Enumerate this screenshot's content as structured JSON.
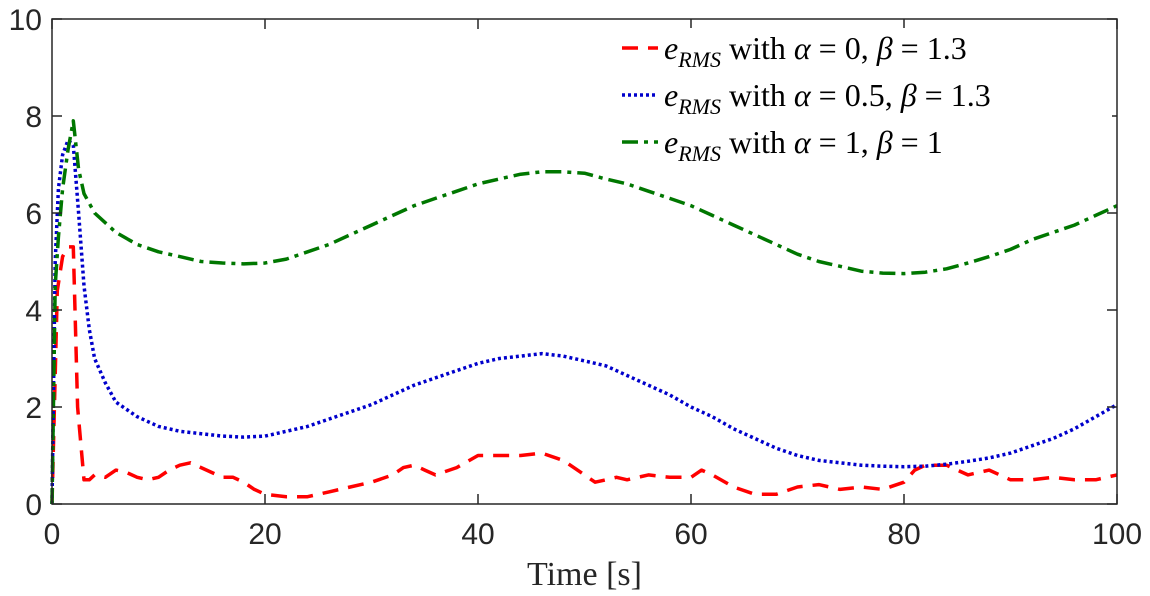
{
  "chart_data": {
    "type": "line",
    "title": "",
    "xlabel": "Time [s]",
    "ylabel": "",
    "xlim": [
      0,
      100
    ],
    "ylim": [
      0,
      10
    ],
    "xticks": [
      0,
      20,
      40,
      60,
      80,
      100
    ],
    "yticks": [
      0,
      2,
      4,
      6,
      8,
      10
    ],
    "grid": false,
    "legend_position": "top-right",
    "series": [
      {
        "legend": {
          "sym": "e",
          "sub": "RMS",
          "mid": " with ",
          "p1": "α",
          "v1": " = 0,  ",
          "p2": "β",
          "v2": " = 1.3"
        },
        "color": "#ff0000",
        "style": "dashed",
        "x": [
          0,
          0.5,
          1,
          1.5,
          2,
          2.4,
          3,
          3.5,
          4,
          5,
          6,
          7,
          8,
          9,
          10,
          11,
          12,
          13,
          14,
          15,
          16,
          17,
          18,
          19,
          20,
          22,
          24,
          26,
          28,
          30,
          32,
          33,
          34,
          35,
          36,
          38,
          40,
          42,
          44,
          46,
          48,
          50,
          51,
          52,
          53,
          54,
          56,
          58,
          60,
          61,
          62,
          64,
          66,
          68,
          70,
          72,
          74,
          76,
          78,
          80,
          81,
          82,
          84,
          86,
          88,
          90,
          92,
          94,
          96,
          98,
          100
        ],
        "y": [
          0,
          4.4,
          5.1,
          5.3,
          5.3,
          2.0,
          0.5,
          0.5,
          0.6,
          0.55,
          0.7,
          0.65,
          0.55,
          0.5,
          0.55,
          0.7,
          0.8,
          0.85,
          0.75,
          0.65,
          0.55,
          0.55,
          0.45,
          0.3,
          0.2,
          0.15,
          0.15,
          0.25,
          0.35,
          0.45,
          0.6,
          0.75,
          0.8,
          0.7,
          0.6,
          0.75,
          1.0,
          1.0,
          1.0,
          1.05,
          0.9,
          0.6,
          0.45,
          0.5,
          0.55,
          0.5,
          0.6,
          0.55,
          0.55,
          0.7,
          0.6,
          0.35,
          0.2,
          0.2,
          0.35,
          0.4,
          0.3,
          0.35,
          0.3,
          0.45,
          0.7,
          0.8,
          0.8,
          0.6,
          0.7,
          0.5,
          0.5,
          0.55,
          0.5,
          0.5,
          0.6
        ]
      },
      {
        "legend": {
          "sym": "e",
          "sub": "RMS",
          "mid": " with ",
          "p1": "α",
          "v1": " = 0.5,  ",
          "p2": "β",
          "v2": " = 1.3"
        },
        "color": "#0000cc",
        "style": "dotted",
        "x": [
          0,
          0.3,
          0.6,
          1,
          1.5,
          2,
          2.5,
          3,
          3.5,
          4,
          5,
          6,
          8,
          10,
          12,
          14,
          16,
          18,
          20,
          22,
          24,
          26,
          28,
          30,
          32,
          34,
          36,
          38,
          40,
          42,
          44,
          46,
          48,
          50,
          52,
          54,
          56,
          58,
          60,
          62,
          64,
          66,
          68,
          70,
          72,
          74,
          76,
          78,
          80,
          82,
          84,
          86,
          88,
          90,
          92,
          94,
          96,
          98,
          100
        ],
        "y": [
          0,
          5.0,
          6.5,
          7.2,
          7.5,
          7.4,
          6.0,
          4.5,
          3.6,
          3.0,
          2.5,
          2.1,
          1.8,
          1.6,
          1.5,
          1.45,
          1.4,
          1.38,
          1.4,
          1.5,
          1.6,
          1.75,
          1.9,
          2.05,
          2.25,
          2.45,
          2.6,
          2.75,
          2.9,
          3.0,
          3.05,
          3.1,
          3.05,
          2.95,
          2.85,
          2.65,
          2.45,
          2.25,
          2.0,
          1.8,
          1.55,
          1.35,
          1.15,
          1.0,
          0.9,
          0.85,
          0.8,
          0.78,
          0.77,
          0.78,
          0.82,
          0.88,
          0.95,
          1.05,
          1.2,
          1.35,
          1.55,
          1.8,
          2.05
        ]
      },
      {
        "legend": {
          "sym": "e",
          "sub": "RMS",
          "mid": " with ",
          "p1": "α",
          "v1": " = 1,  ",
          "p2": "β",
          "v2": " = 1"
        },
        "color": "#007700",
        "style": "dashdot",
        "x": [
          0,
          0.3,
          0.6,
          1,
          1.5,
          2,
          2.5,
          3,
          4,
          6,
          8,
          10,
          12,
          14,
          16,
          18,
          20,
          22,
          24,
          26,
          28,
          30,
          32,
          34,
          36,
          38,
          40,
          42,
          44,
          46,
          48,
          50,
          52,
          54,
          56,
          58,
          60,
          62,
          64,
          66,
          68,
          70,
          72,
          74,
          76,
          78,
          80,
          82,
          84,
          86,
          88,
          90,
          92,
          94,
          96,
          98,
          100
        ],
        "y": [
          0,
          4.5,
          5.5,
          6.5,
          7.3,
          7.9,
          6.9,
          6.4,
          6.0,
          5.6,
          5.35,
          5.2,
          5.1,
          5.0,
          4.97,
          4.95,
          4.97,
          5.05,
          5.2,
          5.35,
          5.55,
          5.75,
          5.95,
          6.15,
          6.3,
          6.45,
          6.6,
          6.7,
          6.8,
          6.85,
          6.85,
          6.82,
          6.7,
          6.6,
          6.45,
          6.3,
          6.15,
          5.95,
          5.75,
          5.55,
          5.35,
          5.15,
          5.0,
          4.9,
          4.8,
          4.76,
          4.75,
          4.78,
          4.85,
          4.97,
          5.1,
          5.25,
          5.45,
          5.6,
          5.75,
          5.95,
          6.15
        ]
      }
    ]
  }
}
